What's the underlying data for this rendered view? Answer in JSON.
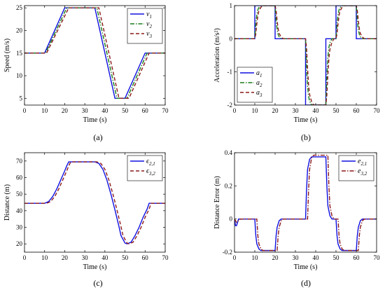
{
  "colors": {
    "series1": "#1010e0",
    "series2": "#1a7d1a",
    "series3": "#8b1a1a",
    "grid_background": "#ffffff",
    "axis": "#000000"
  },
  "chart_data": [
    {
      "id": "a",
      "type": "line",
      "panel_label": "(a)",
      "xlabel": "Time (s)",
      "ylabel": "Speed (m/s)",
      "xlim": [
        0,
        70
      ],
      "ylim": [
        3.5,
        25.5
      ],
      "xticks": [
        0,
        10,
        20,
        30,
        40,
        50,
        60,
        70
      ],
      "yticks": [
        5,
        10,
        15,
        20,
        25
      ],
      "grid": false,
      "legend_position": "top-right",
      "series": [
        {
          "name": "v1",
          "legend_main": "v",
          "legend_sub": "1",
          "style": "solid",
          "color_key": "series1",
          "x": [
            0,
            10,
            20,
            35,
            45,
            50,
            60,
            70
          ],
          "y": [
            15,
            15,
            25,
            25,
            5,
            5,
            15,
            15
          ]
        },
        {
          "name": "v2",
          "legend_main": "v",
          "legend_sub": "2",
          "style": "dashdot",
          "color_key": "series2",
          "x": [
            0,
            10.5,
            21,
            36,
            46,
            51,
            61,
            70
          ],
          "y": [
            15,
            15,
            25,
            25,
            5,
            5,
            15,
            15
          ]
        },
        {
          "name": "v3",
          "legend_main": "v",
          "legend_sub": "3",
          "style": "dashed",
          "color_key": "series3",
          "x": [
            0,
            11,
            22,
            37,
            47,
            52,
            62,
            70
          ],
          "y": [
            15,
            15,
            25,
            25,
            5,
            5,
            15,
            15
          ]
        }
      ]
    },
    {
      "id": "b",
      "type": "line",
      "panel_label": "(b)",
      "xlabel": "Time (s)",
      "ylabel": "Acceleration (m/s²)",
      "xlim": [
        0,
        70
      ],
      "ylim": [
        -2,
        1
      ],
      "xticks": [
        0,
        10,
        20,
        30,
        40,
        50,
        60,
        70
      ],
      "yticks": [
        1,
        0,
        -1,
        -2
      ],
      "grid": false,
      "legend_position": "bottom-left",
      "series": [
        {
          "name": "a1",
          "legend_main": "a",
          "legend_sub": "1",
          "style": "solid",
          "color_key": "series1",
          "x": [
            0,
            10,
            10,
            20,
            20,
            35,
            35,
            45,
            45,
            50,
            50,
            60,
            60,
            70
          ],
          "y": [
            0,
            0,
            1,
            1,
            0,
            0,
            -2,
            -2,
            0,
            0,
            1,
            1,
            0,
            0
          ]
        },
        {
          "name": "a2",
          "legend_main": "a",
          "legend_sub": "2",
          "style": "dashdot",
          "color_key": "series2",
          "x": [
            0,
            10,
            10.5,
            11,
            11.5,
            12,
            13,
            20,
            20.5,
            21,
            21.5,
            22,
            23,
            35,
            35.5,
            36,
            36.5,
            37,
            38,
            45,
            45.5,
            46,
            46.5,
            47,
            48,
            50,
            50.5,
            51,
            51.5,
            52,
            53,
            60,
            60.5,
            61,
            61.5,
            62,
            63,
            70
          ],
          "y": [
            0,
            0,
            0.45,
            0.72,
            0.87,
            0.94,
            1,
            1,
            0.55,
            0.28,
            0.13,
            0.06,
            0,
            0,
            -0.9,
            -1.44,
            -1.74,
            -1.88,
            -2,
            -2,
            -1.1,
            -0.56,
            -0.26,
            -0.12,
            0,
            0,
            0.45,
            0.72,
            0.87,
            0.94,
            1,
            1,
            0.55,
            0.28,
            0.13,
            0.06,
            0,
            0
          ]
        },
        {
          "name": "a3",
          "legend_main": "a",
          "legend_sub": "3",
          "style": "dashed",
          "color_key": "series3",
          "x": [
            0,
            10,
            10.5,
            11,
            11.5,
            12,
            13,
            14,
            20,
            20.5,
            21,
            21.5,
            22,
            23,
            24,
            35,
            35.5,
            36,
            36.5,
            37,
            38,
            39,
            45,
            45.5,
            46,
            46.5,
            47,
            48,
            49,
            50,
            50.5,
            51,
            51.5,
            52,
            53,
            54,
            60,
            60.5,
            61,
            61.5,
            62,
            63,
            64,
            70
          ],
          "y": [
            0,
            0,
            0.15,
            0.45,
            0.7,
            0.84,
            0.95,
            1,
            1,
            0.85,
            0.55,
            0.3,
            0.16,
            0.05,
            0,
            0,
            -0.3,
            -0.9,
            -1.4,
            -1.68,
            -1.9,
            -2,
            -2,
            -1.7,
            -1.1,
            -0.6,
            -0.32,
            -0.1,
            0,
            0,
            0.15,
            0.45,
            0.7,
            0.84,
            0.95,
            1,
            1,
            0.85,
            0.55,
            0.3,
            0.16,
            0.05,
            0,
            0
          ]
        }
      ]
    },
    {
      "id": "c",
      "type": "line",
      "panel_label": "(c)",
      "xlabel": "Time (s)",
      "ylabel": "Distance (m)",
      "xlim": [
        0,
        70
      ],
      "ylim": [
        15,
        75
      ],
      "xticks": [
        0,
        10,
        20,
        30,
        40,
        50,
        60,
        70
      ],
      "yticks": [
        20,
        30,
        40,
        50,
        60,
        70
      ],
      "grid": false,
      "legend_position": "top-right",
      "series": [
        {
          "name": "e21",
          "legend_main": "ϵ",
          "legend_sub": "2,1",
          "style": "solid",
          "color_key": "series1",
          "x": [
            0,
            10,
            12,
            14,
            16,
            18,
            20,
            21,
            22,
            35,
            37,
            39,
            41,
            43,
            45,
            47,
            48,
            50,
            51,
            53,
            55,
            57,
            59,
            61,
            62,
            70
          ],
          "y": [
            44.5,
            44.5,
            45.5,
            48.5,
            53,
            58.5,
            64,
            67,
            69.5,
            69.5,
            68.5,
            65,
            58.5,
            50,
            40.5,
            30.5,
            25,
            20.5,
            20,
            21,
            25,
            30,
            36,
            41,
            44.5,
            44.5
          ]
        },
        {
          "name": "e32",
          "legend_main": "ϵ",
          "legend_sub": "3,2",
          "style": "dashed",
          "color_key": "series3",
          "x": [
            0,
            11,
            13,
            15,
            17,
            19,
            21,
            22,
            23,
            36,
            38,
            40,
            42,
            44,
            46,
            48,
            49,
            51,
            52,
            54,
            56,
            58,
            60,
            62,
            63,
            70
          ],
          "y": [
            44.5,
            44.5,
            45.5,
            48.5,
            53,
            58.5,
            64,
            67,
            69.5,
            69.5,
            68.5,
            65,
            58.5,
            50,
            40.5,
            30.5,
            25,
            20.5,
            20,
            21,
            25,
            30,
            36,
            41,
            44.5,
            44.5
          ]
        }
      ]
    },
    {
      "id": "d",
      "type": "line",
      "panel_label": "(d)",
      "xlabel": "Time (s)",
      "ylabel": "Distance Error (m)",
      "xlim": [
        0,
        70
      ],
      "ylim": [
        -0.2,
        0.4
      ],
      "xticks": [
        0,
        10,
        20,
        30,
        40,
        50,
        60,
        70
      ],
      "yticks": [
        0.4,
        0.2,
        0,
        -0.2
      ],
      "grid": false,
      "legend_position": "top-right",
      "series": [
        {
          "name": "e21",
          "legend_main": "e",
          "legend_sub": "2,1",
          "style": "solid",
          "color_key": "series1",
          "x": [
            0,
            0.5,
            1,
            2,
            10,
            10.5,
            11,
            12,
            13,
            20,
            20.5,
            21,
            22,
            23,
            35,
            35.5,
            36,
            37,
            38,
            45,
            45.5,
            46,
            47,
            48,
            50,
            50.5,
            51,
            52,
            53,
            60,
            60.5,
            61,
            62,
            63,
            70
          ],
          "y": [
            0,
            -0.04,
            -0.04,
            0,
            0,
            -0.1,
            -0.15,
            -0.18,
            -0.19,
            -0.19,
            -0.1,
            -0.05,
            -0.01,
            0,
            0,
            0.18,
            0.3,
            0.36,
            0.375,
            0.375,
            0.2,
            0.08,
            0.02,
            0,
            0,
            -0.1,
            -0.15,
            -0.18,
            -0.19,
            -0.19,
            -0.1,
            -0.05,
            -0.01,
            0,
            0
          ]
        },
        {
          "name": "e32",
          "legend_main": "e",
          "legend_sub": "3,2",
          "style": "dashdot",
          "color_key": "series3",
          "x": [
            0,
            1,
            2,
            3,
            11,
            11.5,
            12,
            13,
            14,
            21,
            21.5,
            22,
            23,
            24,
            36,
            36.5,
            37,
            38,
            39,
            46,
            46.5,
            47,
            48,
            49,
            51,
            51.5,
            52,
            53,
            54,
            61,
            61.5,
            62,
            63,
            64,
            70
          ],
          "y": [
            0,
            -0.02,
            -0.01,
            0,
            0,
            -0.1,
            -0.15,
            -0.18,
            -0.19,
            -0.19,
            -0.1,
            -0.05,
            -0.01,
            0,
            0,
            0.18,
            0.3,
            0.37,
            0.385,
            0.385,
            0.2,
            0.08,
            0.02,
            0,
            0,
            -0.1,
            -0.15,
            -0.18,
            -0.19,
            -0.19,
            -0.1,
            -0.05,
            -0.01,
            0,
            0
          ]
        }
      ]
    }
  ]
}
